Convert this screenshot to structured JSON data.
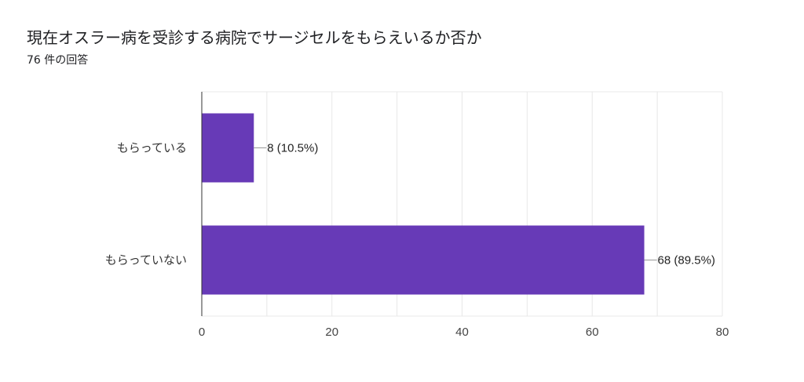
{
  "title": "現在オスラー病を受診する病院でサージセルをもらえいるか否か",
  "subtitle": "76 件の回答",
  "colors": {
    "bar": "#673ab7"
  },
  "chart_data": {
    "type": "bar",
    "orientation": "horizontal",
    "categories": [
      "もらっている",
      "もらっていない"
    ],
    "values": [
      8,
      68
    ],
    "data_labels": [
      "8 (10.5%)",
      "68 (89.5%)"
    ],
    "xlim": [
      0,
      80
    ],
    "xticks": [
      "0",
      "20",
      "40",
      "60",
      "80"
    ],
    "grid": true,
    "legend": "none"
  }
}
